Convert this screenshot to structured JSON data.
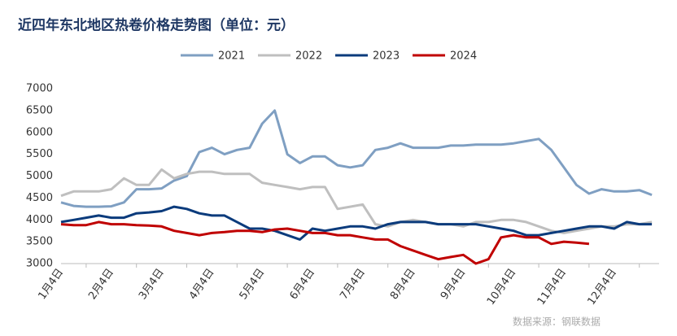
{
  "chart_data": {
    "type": "line",
    "title": "近四年东北地区热卷价格走势图（单位：元）",
    "source": "数据来源：钢联数据",
    "categories": [
      "1月4日",
      null,
      null,
      null,
      "2月4日",
      null,
      null,
      null,
      "3月4日",
      null,
      null,
      null,
      "4月4日",
      null,
      null,
      null,
      "5月4日",
      null,
      null,
      null,
      "6月4日",
      null,
      null,
      null,
      "7月4日",
      null,
      null,
      null,
      "8月4日",
      null,
      null,
      null,
      "9月4日",
      null,
      null,
      null,
      "10月4日",
      null,
      null,
      null,
      "11月4日",
      null,
      null,
      null,
      "12月4日",
      null,
      null,
      null
    ],
    "series": [
      {
        "name": "2021",
        "color": "#7f9fc2",
        "values": [
          4400,
          4320,
          4300,
          4300,
          4310,
          4400,
          4700,
          4700,
          4720,
          4900,
          5000,
          5550,
          5650,
          5500,
          5600,
          5650,
          6200,
          6500,
          5500,
          5300,
          5450,
          5450,
          5250,
          5200,
          5250,
          5600,
          5650,
          5750,
          5650,
          5650,
          5650,
          5700,
          5700,
          5720,
          5720,
          5720,
          5750,
          5800,
          5850,
          5600,
          5200,
          4800,
          4600,
          4700,
          4650,
          4650,
          4680,
          4570
        ]
      },
      {
        "name": "2022",
        "color": "#bfbfbf",
        "values": [
          4550,
          4650,
          4650,
          4650,
          4700,
          4950,
          4800,
          4800,
          5150,
          4950,
          5050,
          5100,
          5100,
          5050,
          5050,
          5050,
          4850,
          4800,
          4750,
          4700,
          4750,
          4750,
          4250,
          4300,
          4350,
          3900,
          3850,
          3950,
          4000,
          3950,
          3900,
          3900,
          3850,
          3950,
          3950,
          4000,
          4000,
          3950,
          3850,
          3750,
          3700,
          3750,
          3800,
          3850,
          3850,
          3900,
          3900,
          3950
        ]
      },
      {
        "name": "2023",
        "color": "#0b3b7c",
        "values": [
          3950,
          4000,
          4050,
          4100,
          4050,
          4050,
          4150,
          4170,
          4200,
          4300,
          4250,
          4150,
          4100,
          4100,
          3950,
          3800,
          3800,
          3750,
          3650,
          3550,
          3800,
          3750,
          3800,
          3850,
          3850,
          3800,
          3900,
          3950,
          3950,
          3950,
          3900,
          3900,
          3900,
          3900,
          3850,
          3800,
          3750,
          3650,
          3650,
          3700,
          3750,
          3800,
          3850,
          3850,
          3800,
          3950,
          3900,
          3900
        ]
      },
      {
        "name": "2024",
        "color": "#c00000",
        "values": [
          3900,
          3880,
          3880,
          3950,
          3900,
          3900,
          3880,
          3870,
          3850,
          3750,
          3700,
          3650,
          3700,
          3720,
          3750,
          3750,
          3720,
          3780,
          3800,
          3750,
          3700,
          3700,
          3650,
          3650,
          3600,
          3550,
          3550,
          3400,
          3300,
          3200,
          3100,
          3150,
          3200,
          3000,
          3100,
          3600,
          3650,
          3600,
          3600,
          3450,
          3500,
          3480,
          3450,
          null,
          null,
          null,
          null,
          null
        ]
      }
    ],
    "ylim": [
      3000,
      7000
    ],
    "yticks": [
      3000,
      3500,
      4000,
      4500,
      5000,
      5500,
      6000,
      6500,
      7000
    ],
    "legend": "top"
  }
}
